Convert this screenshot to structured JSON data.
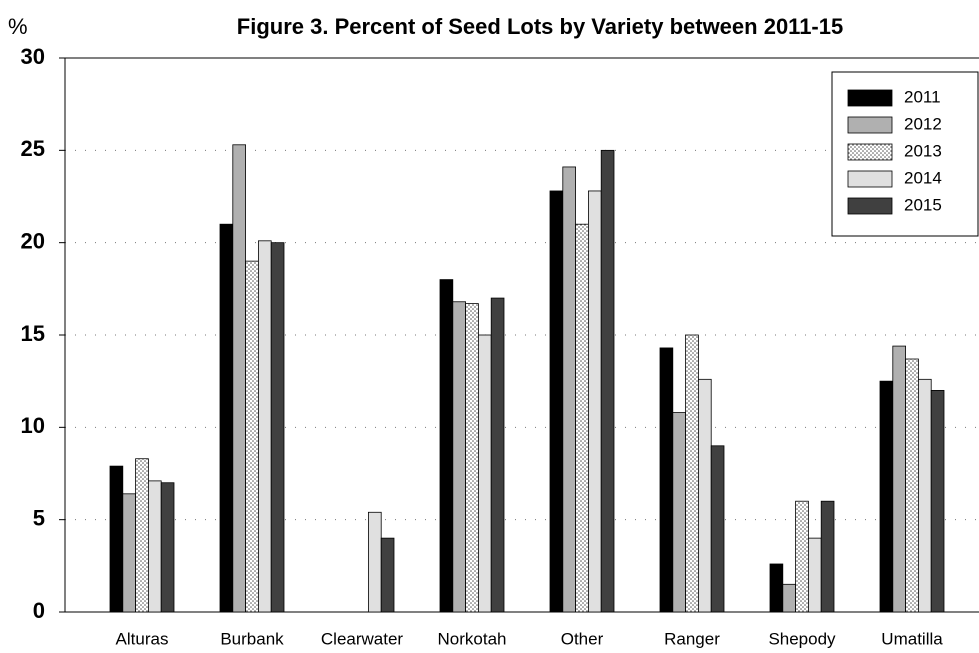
{
  "chart_data": {
    "type": "bar",
    "title": "Figure 3. Percent of Seed Lots by Variety between 2011-15",
    "y_label": "%",
    "categories": [
      "Alturas",
      "Burbank",
      "Clearwater",
      "Norkotah",
      "Other",
      "Ranger",
      "Shepody",
      "Umatilla"
    ],
    "series": [
      {
        "name": "2011",
        "color": "#000000",
        "values": [
          7.9,
          21.0,
          0,
          18.0,
          22.8,
          14.3,
          2.6,
          12.5
        ]
      },
      {
        "name": "2012",
        "color": "#b0b0b0",
        "values": [
          6.4,
          25.3,
          0,
          16.8,
          24.1,
          10.8,
          1.5,
          14.4
        ]
      },
      {
        "name": "2013",
        "color": "#ffffff",
        "pattern": "dots",
        "values": [
          8.3,
          19.0,
          0,
          16.7,
          21.0,
          15.0,
          6.0,
          13.7
        ]
      },
      {
        "name": "2014",
        "color": "#e0e0e0",
        "values": [
          7.1,
          20.1,
          5.4,
          15.0,
          22.8,
          12.6,
          4.0,
          12.6
        ]
      },
      {
        "name": "2015",
        "color": "#404040",
        "values": [
          7.0,
          20.0,
          4.0,
          17.0,
          25.0,
          9.0,
          6.0,
          12.0
        ]
      }
    ],
    "ylim": [
      0,
      30
    ],
    "yticks": [
      0,
      5,
      10,
      15,
      20,
      25,
      30
    ],
    "grid": true,
    "legend": "upper right"
  }
}
